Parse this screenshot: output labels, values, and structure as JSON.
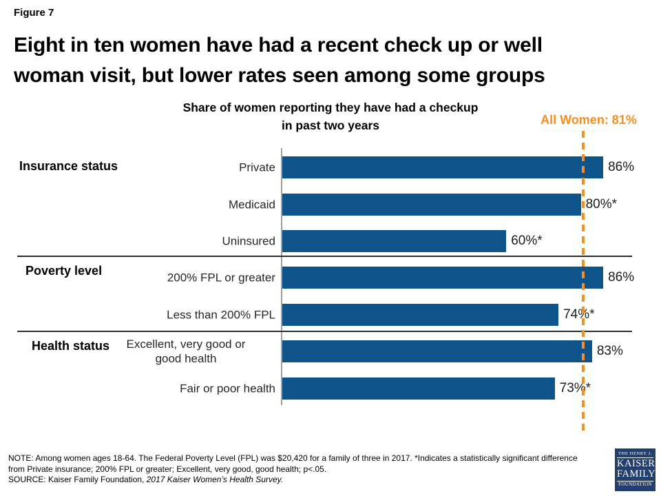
{
  "figure_label": "Figure 7",
  "title_line1": "Eight in ten women have had a recent check up or well",
  "title_line2": "woman visit, but lower rates seen among some groups",
  "chart_data": {
    "type": "bar",
    "orientation": "horizontal",
    "title": "Share of women reporting they have had a checkup in past two years",
    "title_lines": [
      "Share of women reporting they have had a checkup",
      "in past two years"
    ],
    "unit": "%",
    "xlim": [
      0,
      100
    ],
    "grid": false,
    "legend": null,
    "bar_color": "#0E548B",
    "reference_line": {
      "label": "All Women: 81%",
      "value": 81,
      "style": "dashed",
      "color": "#F98E20"
    },
    "groups": [
      {
        "label": "Insurance status",
        "rows": [
          {
            "label": "Private",
            "value": 86,
            "display": "86%"
          },
          {
            "label": "Medicaid",
            "value": 80,
            "display": "80%*"
          },
          {
            "label": "Uninsured",
            "value": 60,
            "display": "60%*"
          }
        ]
      },
      {
        "label": "Poverty level",
        "rows": [
          {
            "label": "200% FPL or greater",
            "value": 86,
            "display": "86%"
          },
          {
            "label": "Less than 200% FPL",
            "value": 74,
            "display": "74%*"
          }
        ]
      },
      {
        "label": "Health status",
        "rows": [
          {
            "label": "Excellent, very good or\ngood health",
            "value": 83,
            "display": "83%"
          },
          {
            "label": "Fair or poor health",
            "value": 73,
            "display": "73%*"
          }
        ]
      }
    ]
  },
  "footer": {
    "note_lines": [
      "NOTE:  Among women ages 18-64. The Federal Poverty Level (FPL) was $20,420 for a family of three in 2017. *Indicates a statistically significant difference",
      "from Private insurance; 200% FPL or greater; Excellent, very good, good health; p<.05."
    ],
    "source_prefix": "SOURCE:  Kaiser Family Foundation, ",
    "source_italic": "2017 Kaiser Women’s Health Survey."
  },
  "logo": {
    "line1": "THE HENRY J.",
    "line2": "KAISER",
    "line3": "FAMILY",
    "line4": "FOUNDATION",
    "bg": "#223F70"
  }
}
